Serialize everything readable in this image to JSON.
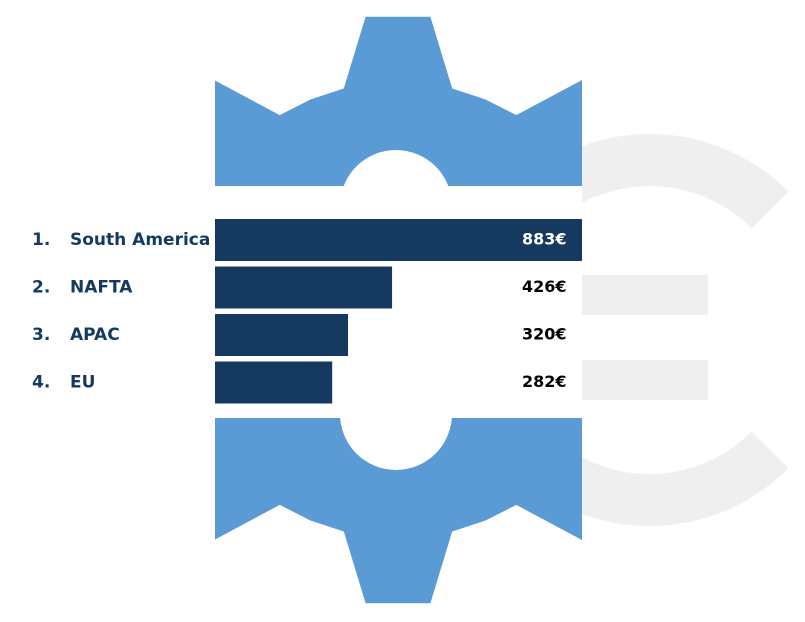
{
  "chart_data": {
    "type": "bar",
    "orientation": "horizontal",
    "ranks": [
      "1.",
      "2.",
      "3.",
      "4."
    ],
    "categories": [
      "South America",
      "NAFTA",
      "APAC",
      "EU"
    ],
    "values": [
      883,
      426,
      320,
      282
    ],
    "value_labels": [
      "883€",
      "426€",
      "320€",
      "282€"
    ],
    "color": "#163a5f"
  }
}
